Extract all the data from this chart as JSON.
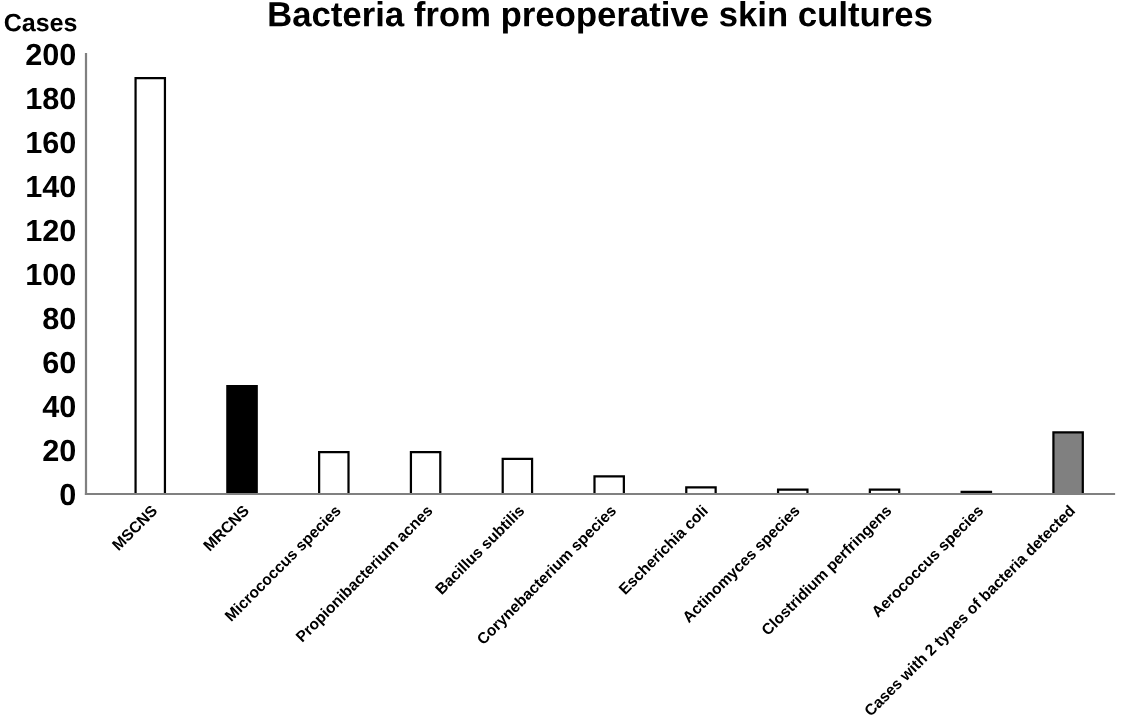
{
  "chart_data": {
    "type": "bar",
    "title": "Bacteria from preoperative skin cultures",
    "ylabel": "Cases",
    "categories": [
      "MSCNS",
      "MRCNS",
      "Micrococcus species",
      "Propionibacterium acnes",
      "Bacillus subtilis",
      "Corynebacterium species",
      "Escherichia coli",
      "Actinomyces species",
      "Clostridium perfringens",
      "Aerococcus species",
      "Cases with 2 types of bacteria detected"
    ],
    "values": [
      189,
      49,
      19,
      19,
      16,
      8,
      3,
      2,
      2,
      1,
      28
    ],
    "colors": [
      "#ffffff",
      "#000000",
      "#ffffff",
      "#ffffff",
      "#ffffff",
      "#ffffff",
      "#ffffff",
      "#ffffff",
      "#ffffff",
      "#ffffff",
      "#808080"
    ],
    "ylim": [
      0,
      200
    ],
    "yticks": [
      0,
      20,
      40,
      60,
      80,
      100,
      120,
      140,
      160,
      180,
      200
    ],
    "grid": false,
    "legend": false
  }
}
